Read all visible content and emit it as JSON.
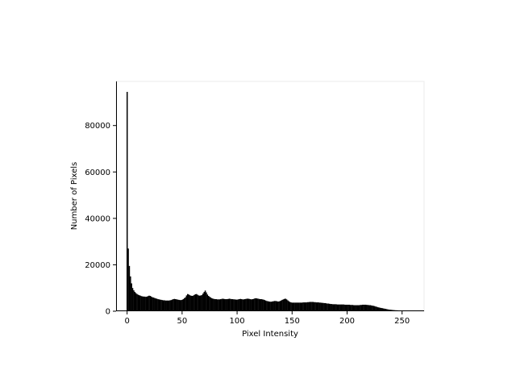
{
  "chart_data": {
    "type": "bar",
    "title": "",
    "xlabel": "Pixel Intensity",
    "ylabel": "Number of Pixels",
    "xlim": [
      -10,
      270
    ],
    "ylim": [
      0,
      99000
    ],
    "x_ticks": [
      0,
      50,
      100,
      150,
      200,
      250
    ],
    "y_ticks": [
      0,
      20000,
      40000,
      60000,
      80000
    ],
    "x_tick_labels": [
      "0",
      "50",
      "100",
      "150",
      "200",
      "250"
    ],
    "y_tick_labels": [
      "0",
      "20000",
      "40000",
      "60000",
      "80000"
    ],
    "grid": false,
    "legend": "none",
    "bar_color": "#000000",
    "series": [
      {
        "x": [
          0,
          1,
          2,
          3,
          4,
          5,
          6,
          7,
          8,
          9,
          10,
          11,
          12,
          13,
          14,
          15,
          16,
          17,
          18,
          19,
          20,
          21,
          22,
          23,
          24,
          25,
          26,
          27,
          28,
          29,
          30,
          31,
          32,
          33,
          34,
          35,
          36,
          37,
          38,
          39,
          40,
          41,
          42,
          43,
          44,
          45,
          46,
          47,
          48,
          49,
          50,
          51,
          52,
          53,
          54,
          55,
          56,
          57,
          58,
          59,
          60,
          61,
          62,
          63,
          64,
          65,
          66,
          67,
          68,
          69,
          70,
          71,
          72,
          73,
          74,
          75,
          76,
          77,
          78,
          79,
          80,
          81,
          82,
          83,
          84,
          85,
          86,
          87,
          88,
          89,
          90,
          91,
          92,
          93,
          94,
          95,
          96,
          97,
          98,
          99,
          100,
          101,
          102,
          103,
          104,
          105,
          106,
          107,
          108,
          109,
          110,
          111,
          112,
          113,
          114,
          115,
          116,
          117,
          118,
          119,
          120,
          121,
          122,
          123,
          124,
          125,
          126,
          127,
          128,
          129,
          130,
          131,
          132,
          133,
          134,
          135,
          136,
          137,
          138,
          139,
          140,
          141,
          142,
          143,
          144,
          145,
          146,
          147,
          148,
          149,
          150,
          151,
          152,
          153,
          154,
          155,
          156,
          157,
          158,
          159,
          160,
          161,
          162,
          163,
          164,
          165,
          166,
          167,
          168,
          169,
          170,
          171,
          172,
          173,
          174,
          175,
          176,
          177,
          178,
          179,
          180,
          181,
          182,
          183,
          184,
          185,
          186,
          187,
          188,
          189,
          190,
          191,
          192,
          193,
          194,
          195,
          196,
          197,
          198,
          199,
          200,
          201,
          202,
          203,
          204,
          205,
          206,
          207,
          208,
          209,
          210,
          211,
          212,
          213,
          214,
          215,
          216,
          217,
          218,
          219,
          220,
          221,
          222,
          223,
          224,
          225,
          226,
          227,
          228,
          229,
          230,
          231,
          232,
          233,
          234,
          235,
          236,
          237,
          238,
          239,
          240,
          241,
          242,
          243,
          244,
          245,
          246,
          247,
          248,
          249,
          250,
          251,
          252,
          253,
          254,
          255
        ],
        "values": [
          94500,
          27000,
          19500,
          15000,
          12000,
          10000,
          9000,
          8300,
          7800,
          7400,
          7100,
          6900,
          6700,
          6500,
          6400,
          6300,
          6300,
          6200,
          6300,
          6500,
          6700,
          6600,
          6300,
          6000,
          5900,
          5700,
          5500,
          5400,
          5200,
          5100,
          5000,
          4900,
          4800,
          4700,
          4700,
          4600,
          4600,
          4600,
          4600,
          4700,
          4800,
          5000,
          5200,
          5300,
          5200,
          5100,
          5000,
          4900,
          4800,
          4800,
          4900,
          5200,
          5600,
          6000,
          6800,
          7400,
          7200,
          6900,
          6700,
          6600,
          6700,
          7000,
          7300,
          7400,
          7100,
          6800,
          6700,
          6800,
          7000,
          7600,
          8300,
          8900,
          8100,
          7200,
          6600,
          6200,
          5900,
          5600,
          5400,
          5300,
          5200,
          5200,
          5100,
          5100,
          5100,
          5200,
          5300,
          5400,
          5300,
          5200,
          5200,
          5200,
          5300,
          5400,
          5300,
          5200,
          5200,
          5100,
          5100,
          5000,
          5000,
          5100,
          5200,
          5300,
          5200,
          5100,
          5100,
          5200,
          5300,
          5400,
          5400,
          5300,
          5200,
          5100,
          5200,
          5300,
          5500,
          5600,
          5500,
          5400,
          5300,
          5200,
          5200,
          5100,
          5000,
          4800,
          4600,
          4400,
          4300,
          4200,
          4100,
          4100,
          4200,
          4300,
          4400,
          4400,
          4300,
          4200,
          4200,
          4400,
          4600,
          4900,
          5100,
          5300,
          5400,
          5100,
          4700,
          4300,
          4000,
          3800,
          3700,
          3700,
          3700,
          3700,
          3700,
          3700,
          3700,
          3700,
          3700,
          3700,
          3800,
          3800,
          3800,
          3800,
          3900,
          3900,
          4000,
          4000,
          4000,
          4000,
          3900,
          3900,
          3800,
          3800,
          3800,
          3700,
          3700,
          3600,
          3600,
          3500,
          3500,
          3400,
          3300,
          3300,
          3200,
          3100,
          3100,
          3000,
          3000,
          3000,
          3000,
          2900,
          2900,
          2900,
          2900,
          2900,
          2900,
          2900,
          2800,
          2800,
          2800,
          2800,
          2800,
          2700,
          2700,
          2700,
          2600,
          2600,
          2600,
          2600,
          2600,
          2600,
          2700,
          2700,
          2800,
          2800,
          2800,
          2800,
          2700,
          2700,
          2600,
          2600,
          2500,
          2400,
          2300,
          2200,
          2000,
          1900,
          1700,
          1600,
          1500,
          1400,
          1300,
          1200,
          1100,
          1000,
          900,
          800,
          700,
          650,
          600,
          550,
          500,
          450,
          420,
          400,
          380,
          350,
          320,
          300,
          280,
          250,
          220,
          200,
          180,
          160
        ]
      }
    ]
  }
}
